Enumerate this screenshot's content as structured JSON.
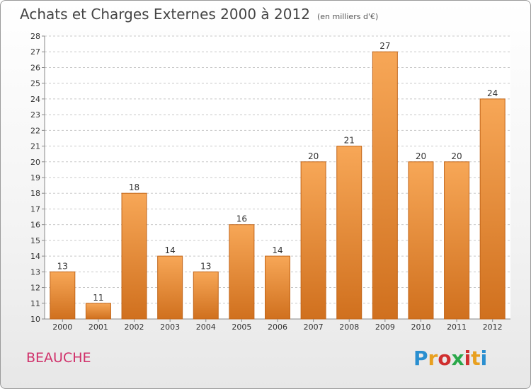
{
  "header": {
    "title": "Achats et Charges Externes 2000 à 2012",
    "unit": "(en milliers d'€)"
  },
  "footer": {
    "commune": "BEAUCHE",
    "logo_text": "Proxiti",
    "logo_colors": [
      "#2a8fd0",
      "#e8a020",
      "#d02f2f",
      "#2aa84a",
      "#d02f2f",
      "#e8a020",
      "#2a8fd0"
    ]
  },
  "colors": {
    "bar_top": "#f7a757",
    "bar_bottom": "#d0701e",
    "bar_stroke": "#c2661a",
    "grid": "#c8c8c8",
    "plot_bg": "#ffffff",
    "commune": "#d0306a"
  },
  "chart_data": {
    "type": "bar",
    "title": "Achats et Charges Externes 2000 à 2012",
    "subtitle": "(en milliers d'€)",
    "categories": [
      "2000",
      "2001",
      "2002",
      "2003",
      "2004",
      "2005",
      "2006",
      "2007",
      "2008",
      "2009",
      "2010",
      "2011",
      "2012"
    ],
    "values": [
      13,
      11,
      18,
      14,
      13,
      16,
      14,
      20,
      21,
      27,
      20,
      20,
      24
    ],
    "ylim": [
      10,
      28
    ],
    "yticks": [
      10,
      11,
      12,
      13,
      14,
      15,
      16,
      17,
      18,
      19,
      20,
      21,
      22,
      23,
      24,
      25,
      26,
      27,
      28
    ],
    "grid": true,
    "data_labels": true
  }
}
